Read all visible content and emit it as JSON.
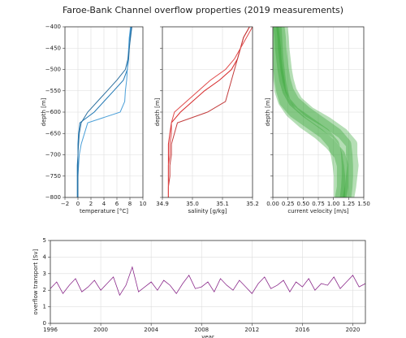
{
  "title": "Faroe-Bank Channel overflow properties (2019 measurements)",
  "chart_data": [
    {
      "type": "profile",
      "xlabel": "temperature [°C]",
      "ylabel": "depth [m]",
      "xlim": [
        -2,
        10
      ],
      "xticks": [
        {
          "value": -2,
          "label": "−2"
        },
        0,
        2,
        4,
        6,
        8,
        10
      ],
      "ylim": [
        -800,
        -400
      ],
      "yticks": [
        {
          "value": -800,
          "label": "−800"
        },
        {
          "value": -750,
          "label": "−750"
        },
        {
          "value": -700,
          "label": "−700"
        },
        {
          "value": -650,
          "label": "−650"
        },
        {
          "value": -600,
          "label": "−600"
        },
        {
          "value": -550,
          "label": "−550"
        },
        {
          "value": -500,
          "label": "−500"
        },
        {
          "value": -450,
          "label": "−450"
        },
        {
          "value": -400,
          "label": "−400"
        }
      ],
      "grid": true,
      "y": [
        -400,
        -425,
        -450,
        -475,
        -500,
        -525,
        -550,
        -575,
        -600,
        -625,
        -650,
        -675,
        -700,
        -725,
        -750,
        -775,
        -800
      ],
      "series": [
        {
          "color": "#1f77b4",
          "values": [
            8.2,
            8.0,
            7.9,
            7.8,
            7.6,
            7.0,
            5.5,
            4.0,
            2.5,
            0.3,
            0.1,
            0.0,
            0.0,
            -0.1,
            -0.1,
            -0.1,
            -0.1
          ]
        },
        {
          "color": "#4a9fd8",
          "values": [
            8.1,
            7.9,
            7.8,
            7.7,
            7.6,
            7.5,
            7.3,
            7.2,
            6.5,
            1.5,
            1.0,
            0.5,
            0.2,
            0.1,
            0.0,
            0.0,
            0.0
          ]
        },
        {
          "color": "#2b6f9e",
          "values": [
            8.3,
            8.1,
            7.9,
            7.7,
            7.3,
            6.0,
            4.5,
            3.0,
            1.5,
            0.5,
            0.2,
            0.1,
            0.0,
            0.0,
            0.0,
            0.0,
            0.0
          ]
        }
      ]
    },
    {
      "type": "profile",
      "xlabel": "salinity [g/kg]",
      "ylabel": "depth [m]",
      "xlim": [
        34.9,
        35.2
      ],
      "xticks": [
        34.9,
        {
          "value": 35.0,
          "label": "35.0"
        },
        35.1,
        35.2
      ],
      "ylim": [
        -800,
        -400
      ],
      "yticks": [
        -800,
        -750,
        -700,
        -650,
        -600,
        -550,
        -500,
        -450,
        -400
      ],
      "grid": true,
      "y": [
        -400,
        -425,
        -450,
        -475,
        -500,
        -525,
        -550,
        -575,
        -600,
        -625,
        -650,
        -675,
        -700,
        -725,
        -750,
        -775,
        -800
      ],
      "series": [
        {
          "color": "#d62728",
          "values": [
            35.19,
            35.17,
            35.16,
            35.15,
            35.13,
            35.09,
            35.04,
            35.0,
            34.96,
            34.93,
            34.925,
            34.92,
            34.92,
            34.92,
            34.92,
            34.92,
            34.92
          ]
        },
        {
          "color": "#c23b3b",
          "values": [
            35.19,
            35.17,
            35.16,
            35.15,
            35.14,
            35.13,
            35.12,
            35.11,
            35.05,
            34.95,
            34.94,
            34.93,
            34.93,
            34.925,
            34.925,
            34.92,
            34.92
          ]
        },
        {
          "color": "#e04a4a",
          "values": [
            35.2,
            35.18,
            35.16,
            35.14,
            35.11,
            35.06,
            35.02,
            34.98,
            34.94,
            34.93,
            34.93,
            34.925,
            34.925,
            34.92,
            34.92,
            34.92,
            34.92
          ]
        }
      ]
    },
    {
      "type": "cloud",
      "xlabel": "current velocity [m/s]",
      "ylabel": "depth [m]",
      "xlim": [
        0,
        1.5
      ],
      "xticks": [
        {
          "value": 0,
          "label": "0.00"
        },
        {
          "value": 0.25,
          "label": "0.25"
        },
        {
          "value": 0.5,
          "label": "0.50"
        },
        {
          "value": 0.75,
          "label": "0.75"
        },
        {
          "value": 1.0,
          "label": "1.00"
        },
        {
          "value": 1.25,
          "label": "1.25"
        },
        {
          "value": 1.5,
          "label": "1.50"
        }
      ],
      "ylim": [
        -800,
        -400
      ],
      "yticks": [
        -800,
        -750,
        -700,
        -650,
        -600,
        -550,
        -500,
        -450,
        -400
      ],
      "grid": true,
      "y": [
        -400,
        -425,
        -450,
        -475,
        -500,
        -525,
        -550,
        -575,
        -600,
        -625,
        -650,
        -675,
        -700,
        -725,
        -750,
        -775,
        -800
      ],
      "series": [
        {
          "color": "#2ca02c",
          "values": [
            0.05,
            0.06,
            0.07,
            0.08,
            0.1,
            0.12,
            0.15,
            0.2,
            0.35,
            0.6,
            0.85,
            1.0,
            1.05,
            1.08,
            1.1,
            1.1,
            1.1
          ]
        },
        {
          "color": "#2ca02c",
          "values": [
            0.1,
            0.12,
            0.13,
            0.15,
            0.17,
            0.2,
            0.25,
            0.35,
            0.55,
            0.8,
            1.05,
            1.2,
            1.22,
            1.23,
            1.23,
            1.22,
            1.2
          ]
        },
        {
          "color": "#2ca02c",
          "values": [
            0.0,
            0.02,
            0.04,
            0.05,
            0.07,
            0.1,
            0.12,
            0.18,
            0.3,
            0.5,
            0.75,
            0.95,
            1.1,
            1.15,
            1.15,
            1.15,
            1.12
          ]
        },
        {
          "color": "#2ca02c",
          "values": [
            0.15,
            0.17,
            0.18,
            0.2,
            0.22,
            0.25,
            0.3,
            0.4,
            0.6,
            0.9,
            1.15,
            1.3,
            1.3,
            1.32,
            1.3,
            1.28,
            1.25
          ]
        }
      ]
    },
    {
      "type": "line",
      "xlabel": "year",
      "ylabel": "overflow transport [Sv]",
      "xlim": [
        1996,
        2021
      ],
      "xticks": [
        1996,
        2000,
        2004,
        2008,
        2012,
        2016,
        2020
      ],
      "ylim": [
        0,
        5
      ],
      "yticks": [
        0,
        1,
        2,
        3,
        4,
        5
      ],
      "grid": true,
      "x": [
        1996,
        1996.5,
        1997,
        1997.5,
        1998,
        1998.5,
        1999,
        1999.5,
        2000,
        2000.5,
        2001,
        2001.5,
        2002,
        2002.5,
        2003,
        2003.5,
        2004,
        2004.5,
        2005,
        2005.5,
        2006,
        2006.5,
        2007,
        2007.5,
        2008,
        2008.5,
        2009,
        2009.5,
        2010,
        2010.5,
        2011,
        2011.5,
        2012,
        2012.5,
        2013,
        2013.5,
        2014,
        2014.5,
        2015,
        2015.5,
        2016,
        2016.5,
        2017,
        2017.5,
        2018,
        2018.5,
        2019,
        2019.5,
        2020,
        2020.5,
        2021
      ],
      "series": [
        {
          "color": "#8b2a8b",
          "values": [
            2.1,
            2.5,
            1.8,
            2.3,
            2.7,
            1.9,
            2.2,
            2.6,
            2.0,
            2.4,
            2.8,
            1.7,
            2.3,
            3.4,
            1.9,
            2.2,
            2.5,
            2.0,
            2.6,
            2.3,
            1.8,
            2.4,
            2.9,
            2.1,
            2.2,
            2.5,
            1.9,
            2.7,
            2.3,
            2.0,
            2.6,
            2.2,
            1.8,
            2.4,
            2.8,
            2.1,
            2.3,
            2.6,
            1.9,
            2.5,
            2.2,
            2.7,
            2.0,
            2.4,
            2.3,
            2.8,
            2.1,
            2.5,
            2.9,
            2.2,
            2.4
          ]
        }
      ]
    }
  ]
}
